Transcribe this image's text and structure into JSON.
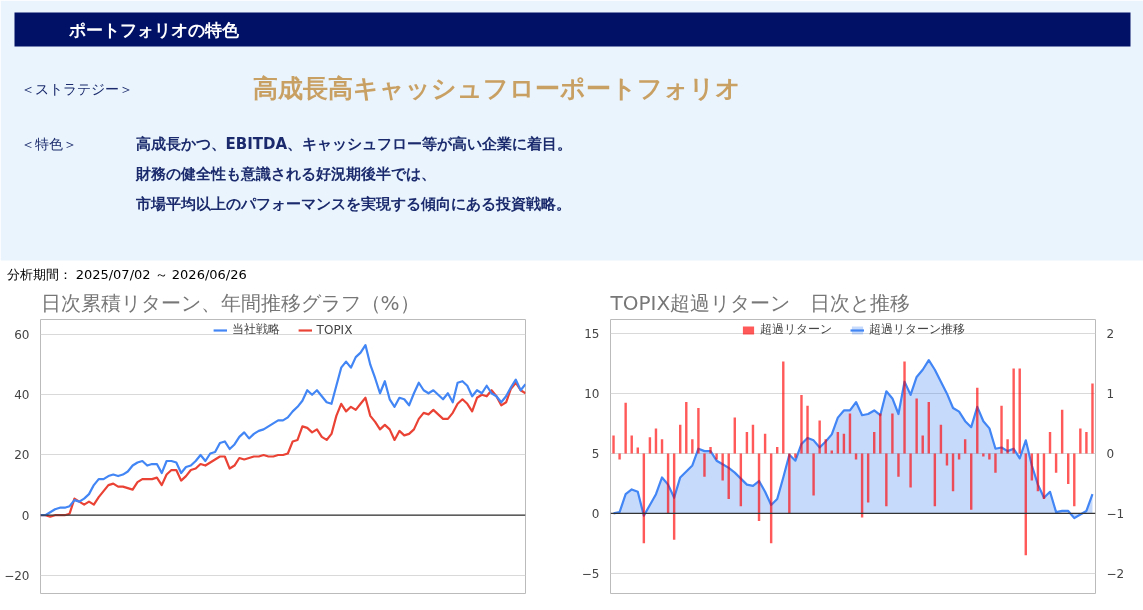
{
  "chart_data": [
    {
      "type": "other",
      "title": "ポートフォリオの特色",
      "annotations": [
        "＜ストラテジー＞",
        "高成長高キャッシュフローポートフォリオ",
        "＜特色＞",
        "高成長かつ、EBITDA、キャッシュフロー等が高い企業に着目。",
        "財務の健全性も意識される好況期後半では、",
        "市場平均以上のパフォーマンスを実現する傾向にある投資戦略。",
        "分析期間： 2025/07/02 ～ 2026/06/26"
      ]
    },
    {
      "type": "line",
      "title": "日次累積リターン、年間推移グラフ（%）",
      "categories": [
        null,
        null,
        null,
        null,
        null,
        null,
        null,
        null,
        null,
        null,
        null,
        null,
        null,
        null,
        null,
        null,
        null,
        null,
        null,
        null,
        null,
        null,
        null,
        null,
        null,
        null,
        null,
        null,
        null,
        null,
        null,
        null,
        null,
        null,
        null,
        null,
        null,
        null,
        null,
        null,
        null,
        null,
        null,
        null,
        null,
        null,
        null,
        null,
        null,
        null,
        null,
        null,
        null,
        null,
        null,
        null,
        null,
        null,
        null,
        null,
        null,
        null,
        null,
        null,
        null,
        null,
        null,
        null,
        null,
        null,
        null,
        null,
        null,
        null,
        null,
        null,
        null,
        null,
        null,
        null,
        null,
        null,
        null,
        null,
        null,
        null,
        null,
        null,
        null,
        null,
        null,
        null,
        null,
        null,
        null,
        null,
        null,
        null,
        null,
        null,
        null
      ],
      "series": [
        {
          "name": "当社戦略",
          "color": "#4285f4",
          "values": [
            0,
            0,
            1,
            2,
            2.5,
            2.5,
            3,
            5,
            4.5,
            5.5,
            7,
            10,
            12,
            12,
            13,
            13.5,
            13,
            13.5,
            14.5,
            16.5,
            17.5,
            18,
            16.5,
            17,
            17,
            14,
            18,
            18,
            17.5,
            14,
            16,
            16.5,
            18,
            20,
            18,
            20.5,
            21,
            24,
            24.5,
            22,
            23.5,
            26,
            27.5,
            25.5,
            27,
            28,
            28.5,
            29.5,
            30.5,
            31.5,
            31.5,
            32.5,
            34.5,
            36,
            38,
            41.5,
            40,
            41.5,
            39.5,
            37.5,
            37,
            43,
            49,
            51,
            49,
            52.5,
            54,
            56.5,
            50,
            45.5,
            40.5,
            44.5,
            38.5,
            36,
            39,
            38.5,
            36.5,
            40.5,
            44,
            41.5,
            40.5,
            41.5,
            40,
            38.5,
            40.5,
            37.5,
            44,
            44.5,
            43,
            39.5,
            41.5,
            40.5,
            43,
            40.5,
            39.5,
            37.5,
            39.5,
            42.5,
            45,
            41.5,
            43.5
          ]
        },
        {
          "name": "TOPIX",
          "color": "#ea4335",
          "values": [
            0,
            0,
            -0.5,
            0,
            0,
            0,
            0.5,
            5.5,
            4.5,
            3.5,
            4.5,
            3.5,
            6,
            8,
            10,
            10.5,
            9.5,
            9.5,
            9,
            8.5,
            11,
            12,
            12,
            12,
            12.5,
            10,
            13.5,
            15,
            15,
            11.5,
            13,
            15,
            15.5,
            17,
            16.5,
            17.5,
            18.5,
            19.5,
            19.5,
            15.5,
            16.5,
            19,
            18.5,
            19,
            19.5,
            19.5,
            20,
            19.5,
            19.5,
            20,
            20,
            20.5,
            24.5,
            25,
            29.5,
            29,
            27.5,
            28.5,
            26,
            25,
            27,
            33,
            37,
            34.5,
            36,
            35,
            37,
            39,
            33,
            31,
            28.5,
            30,
            28.5,
            25,
            28,
            26.5,
            27,
            28.5,
            32,
            34,
            33.5,
            35,
            33.5,
            32,
            32,
            34,
            37,
            38.5,
            37,
            34.5,
            39,
            40,
            39.5,
            41.5,
            39.5,
            36.5,
            37.5,
            42,
            44,
            41.5,
            40.5
          ]
        }
      ],
      "ylim": [
        -26,
        65
      ],
      "yticks": [
        -20,
        0,
        20,
        40,
        60
      ],
      "tick_labels": "y",
      "grid": "y",
      "legend": "top",
      "ref_lines": [
        {
          "axis": "y",
          "value": 0,
          "color": "#333333"
        }
      ]
    },
    {
      "type": "bar",
      "title": "TOPIX超過リターン　日次と推移",
      "categories": [
        null,
        null,
        null,
        null,
        null,
        null,
        null,
        null,
        null,
        null,
        null,
        null,
        null,
        null,
        null,
        null,
        null,
        null,
        null,
        null,
        null,
        null,
        null,
        null,
        null,
        null,
        null,
        null,
        null,
        null,
        null,
        null,
        null,
        null,
        null,
        null,
        null,
        null,
        null,
        null,
        null,
        null,
        null,
        null,
        null,
        null,
        null,
        null,
        null,
        null,
        null,
        null,
        null,
        null,
        null,
        null,
        null,
        null,
        null,
        null,
        null,
        null,
        null,
        null,
        null,
        null,
        null,
        null,
        null,
        null,
        null,
        null,
        null,
        null,
        null,
        null,
        null,
        null,
        null,
        null
      ],
      "series": [
        {
          "name": "超過リターン",
          "type": "bar",
          "axis": "y2",
          "color": "#ff0000",
          "values": [
            0.3,
            -0.1,
            0.85,
            0.3,
            0.1,
            -1.5,
            0.27,
            0.42,
            0.24,
            -1.0,
            -1.44,
            0.48,
            0.86,
            0.24,
            0.76,
            -0.39,
            0.11,
            -0.1,
            -0.45,
            -0.76,
            0.6,
            -0.88,
            0.36,
            0.48,
            -1.13,
            0.33,
            -1.5,
            0.11,
            1.54,
            -1.0,
            -0.07,
            0.98,
            0.8,
            -0.7,
            0.55,
            0.24,
            0.05,
            0.36,
            0.33,
            0.67,
            -0.1,
            -1.07,
            -0.82,
            0.36,
            0.67,
            -0.88,
            0.67,
            -0.39,
            1.54,
            -0.57,
            0.92,
            0.3,
            0.86,
            -0.88,
            0.48,
            -0.2,
            -0.63,
            -0.1,
            0.24,
            -0.94,
            1.1,
            -0.05,
            -0.1,
            -0.32,
            0.8,
            0.24,
            1.42,
            1.42,
            -1.7,
            -0.45,
            -0.63,
            -0.76,
            0.36,
            -0.32,
            0.73,
            -0.51,
            -0.88,
            0.42,
            0.36,
            1.17
          ]
        },
        {
          "name": "超過リターン推移",
          "type": "area",
          "color": "#4285f4",
          "values": [
            0,
            0.1,
            1.6,
            2,
            1.8,
            -0.2,
            0.7,
            1.6,
            3,
            2.4,
            1.3,
            3,
            3.5,
            4,
            5.4,
            5.2,
            5.2,
            4.4,
            4.1,
            3.8,
            3.4,
            2.9,
            2.4,
            2.3,
            2.7,
            1.8,
            0.7,
            1.2,
            3,
            4.9,
            4.4,
            5.8,
            6.3,
            6.1,
            5.5,
            6,
            6.6,
            8,
            8.6,
            8.6,
            9.3,
            8.2,
            8.3,
            8.6,
            8.2,
            10.2,
            9.6,
            8.3,
            11,
            9.9,
            11.4,
            12,
            12.8,
            12,
            11,
            10,
            8.8,
            8.5,
            7.7,
            7.2,
            8.9,
            7.7,
            7.1,
            5.4,
            5.5,
            5.2,
            5.4,
            4.6,
            6.1,
            4,
            2.4,
            1.3,
            1.8,
            0.1,
            0.2,
            0.2,
            -0.4,
            -0.1,
            0.2,
            1.6
          ]
        }
      ],
      "ylim": [
        -6.7,
        16.2
      ],
      "yticks": [
        -5,
        0,
        5,
        10,
        15
      ],
      "y2lim": [
        -2.34,
        2.24
      ],
      "y2ticks": [
        -2,
        -1,
        0,
        1,
        2
      ],
      "tick_labels": "y",
      "grid": "y",
      "legend": "top",
      "ref_lines": [
        {
          "axis": "y",
          "value": 0,
          "color": "#333333"
        }
      ]
    }
  ]
}
